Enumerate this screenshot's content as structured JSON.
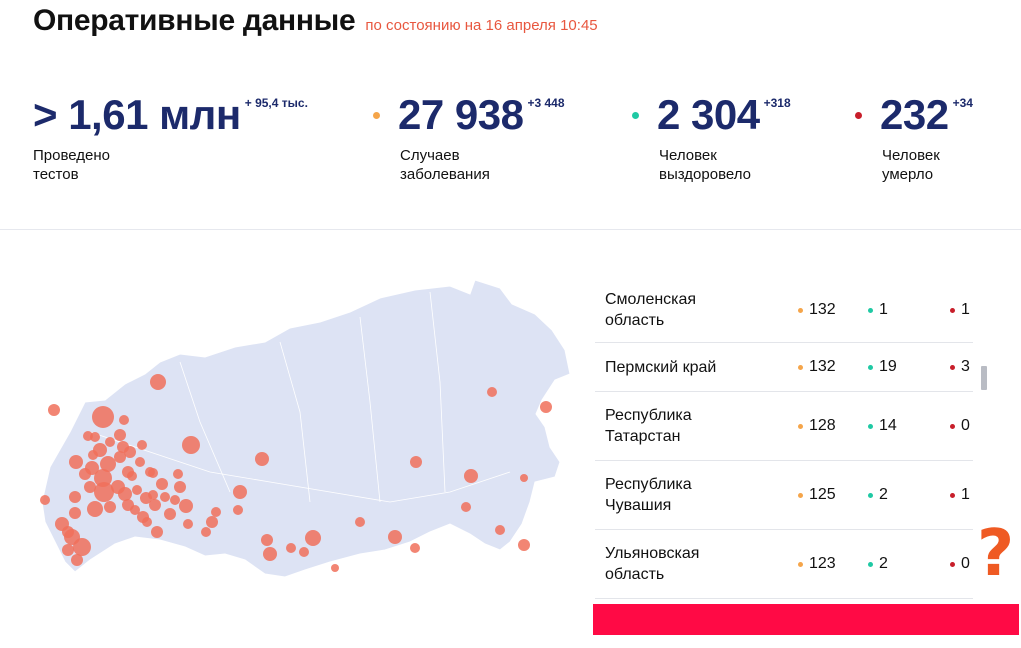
{
  "header": {
    "title": "Оперативные данные",
    "as_of": "по состоянию на 16 апреля 10:45"
  },
  "stats": [
    {
      "value": "> 1,61 млн",
      "delta": "+ 95,4 тыс.",
      "label": "Проведено\nтестов"
    },
    {
      "value": "27 938",
      "delta": "+3 448",
      "label": "Случаев\nзаболевания"
    },
    {
      "value": "2 304",
      "delta": "+318",
      "label": "Человек\nвыздоровело"
    },
    {
      "value": "232",
      "delta": "+34",
      "label": "Человек\nумерло"
    }
  ],
  "colors": {
    "cases": "#f5a54a",
    "recovered": "#1fc9a4",
    "deaths": "#c81e2a",
    "accent_text": "#e8573f",
    "numbers": "#1c2a6b",
    "map_land": "#dde3f4",
    "map_dot": "#f0705a"
  },
  "map": {
    "name": "russia-map"
  },
  "regions": [
    {
      "name": "Смоленская\nобласть",
      "cases": "132",
      "recovered": "1",
      "deaths": "1"
    },
    {
      "name": "Пермский край",
      "cases": "132",
      "recovered": "19",
      "deaths": "3"
    },
    {
      "name": "Республика\nТатарстан",
      "cases": "128",
      "recovered": "14",
      "deaths": "0"
    },
    {
      "name": "Республика\nЧувашия",
      "cases": "125",
      "recovered": "2",
      "deaths": "1"
    },
    {
      "name": "Ульяновская\nобласть",
      "cases": "123",
      "recovered": "2",
      "deaths": "0"
    }
  ],
  "overlay": {
    "question_mark": "?"
  }
}
